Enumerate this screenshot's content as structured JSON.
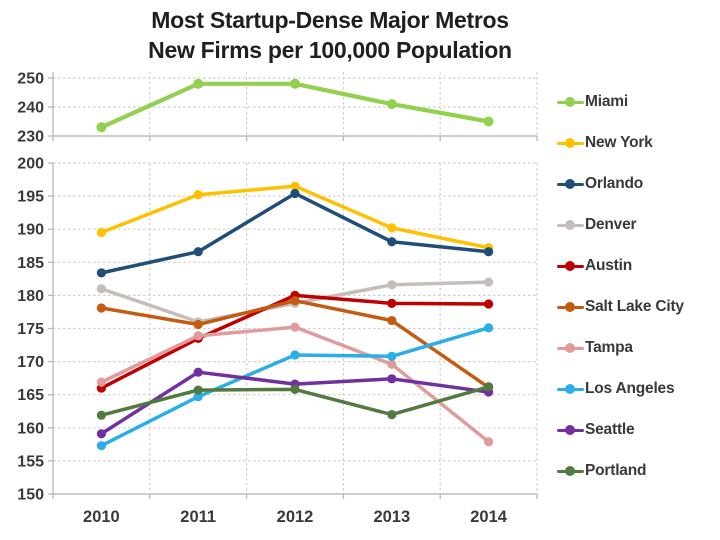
{
  "title": {
    "line1": "Most Startup-Dense Major Metros",
    "line2": "New Firms per 100,000 Population"
  },
  "style": {
    "grid_color": "#d2cfcd",
    "axis_color": "#bfbcba",
    "tick_label_color": "#3b3838",
    "title_color": "#1f1f1f",
    "background": "#ffffff"
  },
  "chart_data": {
    "type": "line",
    "broken_axis": true,
    "x_label_font": "bold",
    "categories": [
      "2010",
      "2011",
      "2012",
      "2013",
      "2014"
    ],
    "legend_position": "right",
    "panels": [
      {
        "name": "top-panel",
        "ylim": [
          230,
          250
        ],
        "yticks": [
          230,
          240,
          250
        ],
        "grid": true,
        "series": [
          {
            "name": "Miami",
            "color": "#92D050",
            "values": [
              233,
              248,
              248,
              241,
              235
            ]
          }
        ]
      },
      {
        "name": "bottom-panel",
        "ylim": [
          150,
          200
        ],
        "yticks": [
          150,
          155,
          160,
          165,
          170,
          175,
          180,
          185,
          190,
          195,
          200
        ],
        "grid": true,
        "series": [
          {
            "name": "New York",
            "color": "#FFC000",
            "values": [
              189.5,
              195.2,
              196.5,
              190.2,
              187.2
            ]
          },
          {
            "name": "Orlando",
            "color": "#1F4E79",
            "values": [
              183.4,
              186.6,
              195.4,
              188.1,
              186.6
            ]
          },
          {
            "name": "Denver",
            "color": "#C4BEBB",
            "values": [
              181.0,
              176.0,
              178.8,
              181.6,
              182.0
            ]
          },
          {
            "name": "Austin",
            "color": "#C00000",
            "values": [
              166.0,
              173.5,
              180.0,
              178.8,
              178.7
            ]
          },
          {
            "name": "Salt Lake City",
            "color": "#C55A11",
            "values": [
              178.1,
              175.6,
              179.2,
              176.2,
              166.1
            ]
          },
          {
            "name": "Tampa",
            "color": "#E09C9D",
            "values": [
              166.9,
              173.9,
              175.2,
              169.6,
              157.9
            ]
          },
          {
            "name": "Los Angeles",
            "color": "#29AEE8",
            "values": [
              157.3,
              164.7,
              171.0,
              170.8,
              175.1
            ]
          },
          {
            "name": "Seattle",
            "color": "#7030A0",
            "values": [
              159.1,
              168.4,
              166.6,
              167.4,
              165.4
            ]
          },
          {
            "name": "Portland",
            "color": "#4F7B3F",
            "values": [
              161.9,
              165.7,
              165.8,
              162.0,
              166.2
            ]
          }
        ]
      }
    ]
  }
}
